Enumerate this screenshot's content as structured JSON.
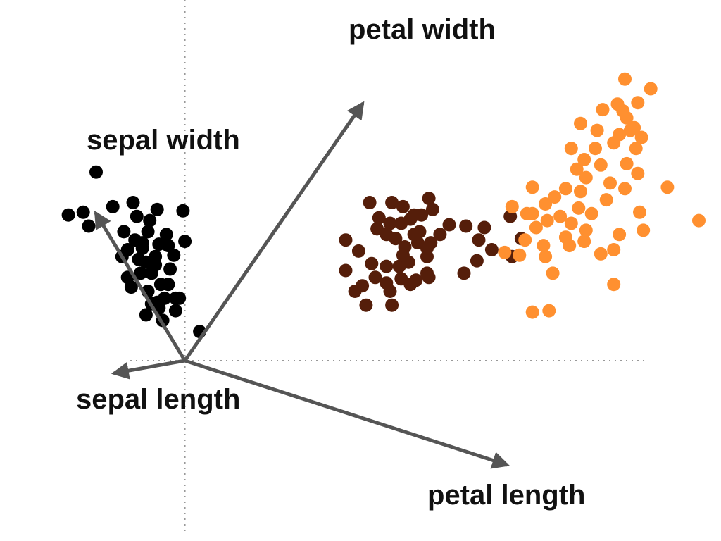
{
  "chart_data": {
    "type": "scatter",
    "title": "",
    "xlabel": "",
    "ylabel": "",
    "xlim": [
      -1.0,
      2.9
    ],
    "ylim": [
      -1.3,
      2.6
    ],
    "grid": false,
    "legend": "none",
    "zero_lines": true,
    "axis_line_color": "#999999",
    "arrow_color": "#555555",
    "series": [
      {
        "color": "#000000",
        "points": [
          [
            -0.48,
            1.36
          ],
          [
            -0.55,
            1.07
          ],
          [
            -0.63,
            1.05
          ],
          [
            -0.52,
            0.97
          ],
          [
            -0.39,
            1.11
          ],
          [
            -0.28,
            1.14
          ],
          [
            -0.01,
            1.08
          ],
          [
            -0.15,
            1.09
          ],
          [
            -0.26,
            1.04
          ],
          [
            -0.19,
            1.01
          ],
          [
            0.0,
            0.86
          ],
          [
            -0.09,
            0.83
          ],
          [
            -0.2,
            0.93
          ],
          [
            -0.33,
            0.93
          ],
          [
            -0.27,
            0.87
          ],
          [
            -0.23,
            0.81
          ],
          [
            -0.16,
            0.75
          ],
          [
            -0.08,
            0.66
          ],
          [
            -0.18,
            0.63
          ],
          [
            -0.13,
            0.55
          ],
          [
            -0.05,
            0.45
          ],
          [
            -0.03,
            0.45
          ],
          [
            -0.11,
            0.45
          ],
          [
            -0.2,
            0.5
          ],
          [
            -0.14,
            0.38
          ],
          [
            -0.21,
            0.33
          ],
          [
            -0.12,
            0.29
          ],
          [
            -0.05,
            0.36
          ],
          [
            -0.18,
            0.41
          ],
          [
            -0.29,
            0.53
          ],
          [
            -0.25,
            0.73
          ],
          [
            -0.31,
            0.8
          ],
          [
            -0.23,
            0.85
          ],
          [
            -0.1,
            0.91
          ],
          [
            -0.06,
            0.76
          ],
          [
            -0.16,
            0.69
          ],
          [
            -0.09,
            0.55
          ],
          [
            -0.31,
            0.6
          ],
          [
            -0.34,
            0.75
          ],
          [
            -0.14,
            0.84
          ],
          [
            -0.24,
            0.63
          ],
          [
            0.08,
            0.21
          ],
          [
            -0.15,
            0.42
          ],
          [
            -0.21,
            0.71
          ]
        ]
      },
      {
        "color": "#551e0a",
        "points": [
          [
            1.0,
            1.14
          ],
          [
            1.12,
            1.14
          ],
          [
            1.32,
            1.17
          ],
          [
            1.34,
            1.09
          ],
          [
            1.28,
            1.05
          ],
          [
            1.22,
            1.02
          ],
          [
            1.17,
            0.99
          ],
          [
            1.18,
            1.11
          ],
          [
            1.24,
            1.05
          ],
          [
            1.11,
            0.99
          ],
          [
            1.05,
            1.03
          ],
          [
            1.04,
            0.95
          ],
          [
            1.09,
            0.91
          ],
          [
            1.14,
            0.88
          ],
          [
            1.19,
            0.82
          ],
          [
            1.26,
            0.85
          ],
          [
            1.27,
            0.93
          ],
          [
            1.33,
            0.85
          ],
          [
            1.16,
            0.68
          ],
          [
            1.01,
            0.7
          ],
          [
            0.87,
            0.87
          ],
          [
            0.94,
            0.79
          ],
          [
            1.31,
            0.63
          ],
          [
            1.25,
            0.58
          ],
          [
            1.21,
            0.71
          ],
          [
            1.31,
            0.75
          ],
          [
            1.38,
            0.91
          ],
          [
            1.43,
            0.98
          ],
          [
            1.52,
            0.97
          ],
          [
            1.59,
            0.87
          ],
          [
            1.62,
            0.96
          ],
          [
            1.76,
            1.04
          ],
          [
            1.82,
            0.88
          ],
          [
            1.77,
            0.75
          ],
          [
            1.66,
            0.8
          ],
          [
            1.58,
            0.72
          ],
          [
            1.51,
            0.63
          ],
          [
            1.32,
            0.6
          ],
          [
            1.22,
            0.55
          ],
          [
            1.17,
            0.59
          ],
          [
            1.09,
            0.56
          ],
          [
            1.03,
            0.6
          ],
          [
            0.96,
            0.54
          ],
          [
            1.12,
            0.4
          ],
          [
            1.11,
            0.5
          ],
          [
            0.87,
            0.65
          ],
          [
            0.92,
            0.5
          ],
          [
            0.98,
            0.4
          ],
          [
            1.09,
            0.68
          ],
          [
            1.18,
            0.76
          ],
          [
            1.24,
            0.91
          ],
          [
            1.31,
            0.81
          ]
        ]
      },
      {
        "color": "#ff9030",
        "points": [
          [
            2.38,
            2.03
          ],
          [
            2.45,
            1.86
          ],
          [
            2.52,
            1.96
          ],
          [
            2.34,
            1.85
          ],
          [
            2.26,
            1.81
          ],
          [
            2.23,
            1.66
          ],
          [
            2.35,
            1.63
          ],
          [
            2.43,
            1.68
          ],
          [
            2.39,
            1.75
          ],
          [
            2.14,
            1.71
          ],
          [
            2.09,
            1.53
          ],
          [
            2.22,
            1.53
          ],
          [
            2.32,
            1.57
          ],
          [
            2.44,
            1.53
          ],
          [
            2.25,
            1.41
          ],
          [
            2.16,
            1.45
          ],
          [
            2.12,
            1.38
          ],
          [
            2.06,
            1.24
          ],
          [
            2.17,
            1.32
          ],
          [
            2.3,
            1.28
          ],
          [
            2.38,
            1.24
          ],
          [
            2.45,
            1.35
          ],
          [
            2.39,
            1.42
          ],
          [
            2.14,
            1.22
          ],
          [
            2.0,
            1.18
          ],
          [
            1.88,
            1.25
          ],
          [
            1.95,
            1.13
          ],
          [
            2.03,
            1.04
          ],
          [
            2.09,
            0.99
          ],
          [
            2.13,
            1.1
          ],
          [
            2.2,
            1.06
          ],
          [
            2.28,
            1.16
          ],
          [
            1.85,
            1.06
          ],
          [
            1.9,
            0.96
          ],
          [
            1.84,
            0.87
          ],
          [
            1.96,
            1.01
          ],
          [
            2.06,
            0.89
          ],
          [
            1.94,
            0.83
          ],
          [
            1.81,
            0.76
          ],
          [
            1.95,
            0.75
          ],
          [
            2.08,
            0.83
          ],
          [
            2.17,
            0.94
          ],
          [
            2.35,
            0.91
          ],
          [
            2.25,
            0.77
          ],
          [
            2.48,
            0.94
          ],
          [
            2.46,
            1.07
          ],
          [
            2.32,
            0.8
          ],
          [
            1.99,
            0.63
          ],
          [
            1.73,
            0.78
          ],
          [
            2.16,
            0.86
          ],
          [
            1.88,
            1.06
          ],
          [
            1.77,
            1.11
          ],
          [
            1.88,
            0.35
          ],
          [
            1.97,
            0.36
          ],
          [
            2.32,
            0.55
          ],
          [
            2.78,
            1.01
          ],
          [
            2.61,
            1.25
          ],
          [
            2.47,
            1.61
          ],
          [
            2.41,
            1.66
          ],
          [
            2.37,
            1.8
          ]
        ]
      }
    ],
    "loading_vectors": [
      {
        "label": "sepal length",
        "x": -0.38,
        "y": -0.09
      },
      {
        "label": "sepal width",
        "x": -0.48,
        "y": 1.06
      },
      {
        "label": "petal width",
        "x": 0.96,
        "y": 1.85
      },
      {
        "label": "petal length",
        "x": 1.74,
        "y": -0.75
      }
    ]
  }
}
